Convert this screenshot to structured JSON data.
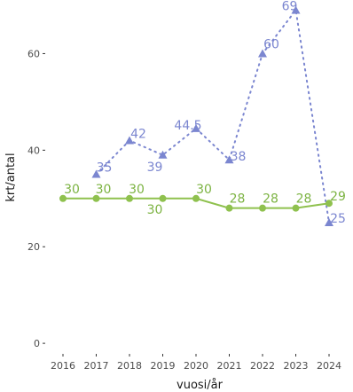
{
  "chart_data": {
    "type": "line",
    "xlabel": "vuosi/år",
    "ylabel": "krt/antal",
    "x": [
      2016,
      2017,
      2018,
      2019,
      2020,
      2021,
      2022,
      2023,
      2024
    ],
    "x_tick_labels": [
      "2016",
      "2017",
      "2018",
      "2019",
      "2020",
      "2021",
      "2022",
      "2023",
      "2024"
    ],
    "ylim": [
      -2,
      70
    ],
    "y_ticks": [
      0,
      20,
      40,
      60
    ],
    "y_tick_labels": [
      "0",
      "20",
      "40",
      "60"
    ],
    "grid": false,
    "legend": "none",
    "series": [
      {
        "color": "#8fc14e",
        "label_color": "#7cb342",
        "line_style": "solid",
        "marker": "circle",
        "x": [
          2016,
          2017,
          2018,
          2019,
          2020,
          2021,
          2022,
          2023,
          2024
        ],
        "values": [
          30,
          30,
          30,
          30,
          30,
          28,
          28,
          28,
          29
        ],
        "labels": [
          "30",
          "30",
          "30",
          "30",
          "30",
          "28",
          "28",
          "28",
          "29"
        ]
      },
      {
        "color": "#7b86d0",
        "label_color": "#7b86d0",
        "line_style": "dotted",
        "marker": "triangle",
        "x": [
          2017,
          2018,
          2019,
          2020,
          2021,
          2022,
          2023,
          2024
        ],
        "values": [
          35,
          42,
          39,
          44.5,
          38,
          60,
          69,
          25
        ],
        "labels": [
          "35",
          "42",
          "39",
          "44.5",
          "38",
          "60",
          "69",
          "25"
        ]
      }
    ]
  }
}
